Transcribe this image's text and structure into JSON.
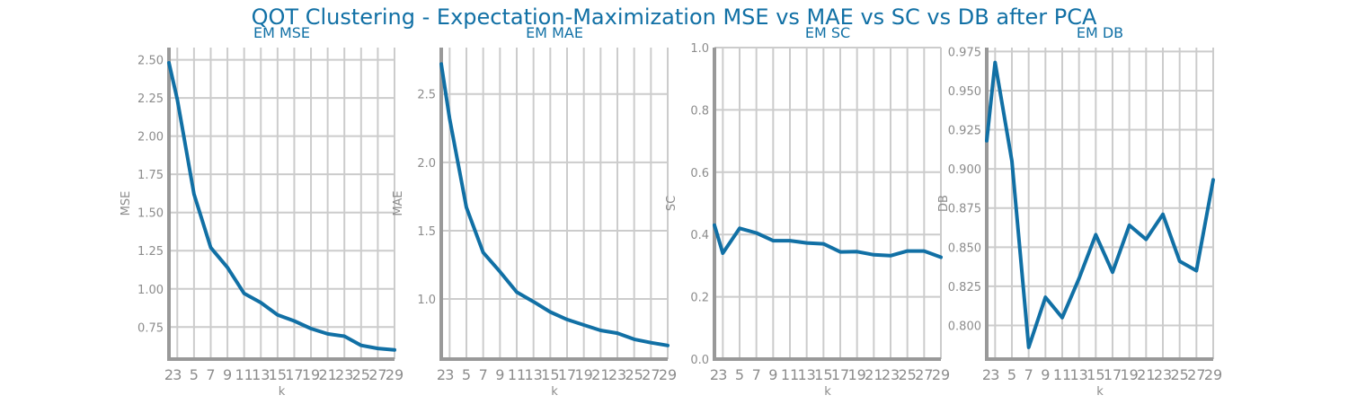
{
  "title": "QOT Clustering - Expectation-Maximization MSE vs MAE vs SC vs DB after PCA",
  "colors": {
    "line": "#1170a5",
    "axis": "#999999",
    "grid": "#cccccc",
    "tick": "#8c8c8c",
    "title": "#1170a5"
  },
  "chart_data": [
    {
      "type": "line",
      "title": "EM MSE",
      "xlabel": "k",
      "ylabel": "MSE",
      "x": [
        2,
        3,
        5,
        7,
        9,
        11,
        13,
        15,
        17,
        19,
        21,
        23,
        25,
        27,
        29
      ],
      "xticks": [
        2,
        3,
        5,
        7,
        9,
        11,
        13,
        15,
        17,
        19,
        21,
        23,
        25,
        27,
        29
      ],
      "values": [
        2.48,
        2.24,
        1.62,
        1.27,
        1.14,
        0.97,
        0.91,
        0.83,
        0.79,
        0.74,
        0.705,
        0.69,
        0.63,
        0.61,
        0.6
      ],
      "xlim": [
        2,
        29
      ],
      "ylim": [
        0.54,
        2.58
      ],
      "yticks": [
        0.75,
        1.0,
        1.25,
        1.5,
        1.75,
        2.0,
        2.25,
        2.5
      ],
      "ytick_labels": [
        "0.75",
        "1.00",
        "1.25",
        "1.50",
        "1.75",
        "2.00",
        "2.25",
        "2.50"
      ],
      "grid": true
    },
    {
      "type": "line",
      "title": "EM MAE",
      "xlabel": "k",
      "ylabel": "MAE",
      "x": [
        2,
        3,
        5,
        7,
        9,
        11,
        13,
        15,
        17,
        19,
        21,
        23,
        25,
        27,
        29
      ],
      "xticks": [
        2,
        3,
        5,
        7,
        9,
        11,
        13,
        15,
        17,
        19,
        21,
        23,
        25,
        27,
        29
      ],
      "values": [
        2.72,
        2.32,
        1.67,
        1.34,
        1.2,
        1.05,
        0.98,
        0.905,
        0.85,
        0.81,
        0.77,
        0.75,
        0.705,
        0.68,
        0.66
      ],
      "xlim": [
        2,
        29
      ],
      "ylim": [
        0.56,
        2.84
      ],
      "yticks": [
        1.0,
        1.5,
        2.0,
        2.5
      ],
      "ytick_labels": [
        "1.0",
        "1.5",
        "2.0",
        "2.5"
      ],
      "grid": true
    },
    {
      "type": "line",
      "title": "EM SC",
      "xlabel": "k",
      "ylabel": "SC",
      "x": [
        2,
        3,
        5,
        7,
        9,
        11,
        13,
        15,
        17,
        19,
        21,
        23,
        25,
        27,
        29
      ],
      "xticks": [
        2,
        3,
        5,
        7,
        9,
        11,
        13,
        15,
        17,
        19,
        21,
        23,
        25,
        27,
        29
      ],
      "values": [
        0.43,
        0.34,
        0.42,
        0.405,
        0.38,
        0.38,
        0.373,
        0.37,
        0.344,
        0.345,
        0.335,
        0.332,
        0.347,
        0.347,
        0.327
      ],
      "xlim": [
        2,
        29
      ],
      "ylim": [
        0,
        1.0
      ],
      "yticks": [
        0.0,
        0.2,
        0.4,
        0.6,
        0.8,
        1.0
      ],
      "ytick_labels": [
        "0.0",
        "0.2",
        "0.4",
        "0.6",
        "0.8",
        "1.0"
      ],
      "grid": true
    },
    {
      "type": "line",
      "title": "EM DB",
      "xlabel": "k",
      "ylabel": "DB",
      "x": [
        2,
        3,
        5,
        7,
        9,
        11,
        13,
        15,
        17,
        19,
        21,
        23,
        25,
        27,
        29
      ],
      "xticks": [
        2,
        3,
        5,
        7,
        9,
        11,
        13,
        15,
        17,
        19,
        21,
        23,
        25,
        27,
        29
      ],
      "values": [
        0.918,
        0.968,
        0.905,
        0.786,
        0.818,
        0.805,
        0.83,
        0.858,
        0.834,
        0.864,
        0.855,
        0.871,
        0.841,
        0.835,
        0.893
      ],
      "xlim": [
        2,
        29
      ],
      "ylim": [
        0.7785,
        0.9775
      ],
      "yticks": [
        0.8,
        0.825,
        0.85,
        0.875,
        0.9,
        0.925,
        0.95,
        0.975
      ],
      "ytick_labels": [
        "0.800",
        "0.825",
        "0.850",
        "0.875",
        "0.900",
        "0.925",
        "0.950",
        "0.975"
      ],
      "grid": true
    }
  ]
}
